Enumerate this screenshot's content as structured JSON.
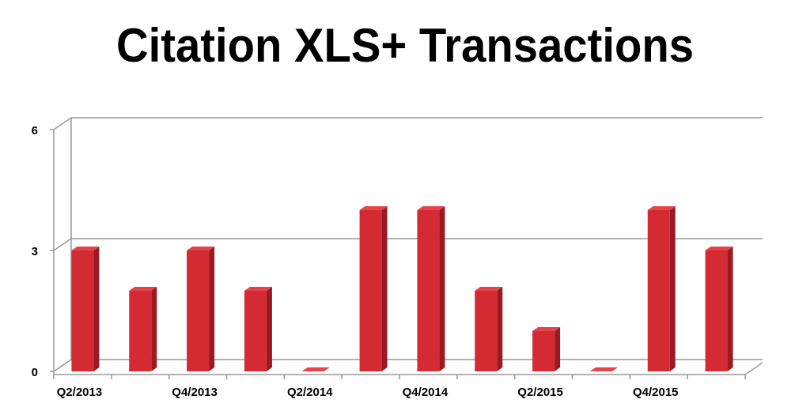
{
  "chart_data": {
    "type": "bar3d",
    "title": "Citation XLS+ Transactions",
    "categories": [
      "Q2/2013",
      null,
      "Q4/2013",
      null,
      "Q2/2014",
      null,
      "Q4/2014",
      null,
      "Q2/2015",
      null,
      "Q4/2015",
      null
    ],
    "values": [
      3,
      2,
      3,
      2,
      0,
      4,
      4,
      2,
      1,
      0,
      4,
      3
    ],
    "color": "#d42a34",
    "ylim": [
      0,
      6
    ],
    "yticks": [
      0,
      3,
      6
    ],
    "grid": true
  }
}
